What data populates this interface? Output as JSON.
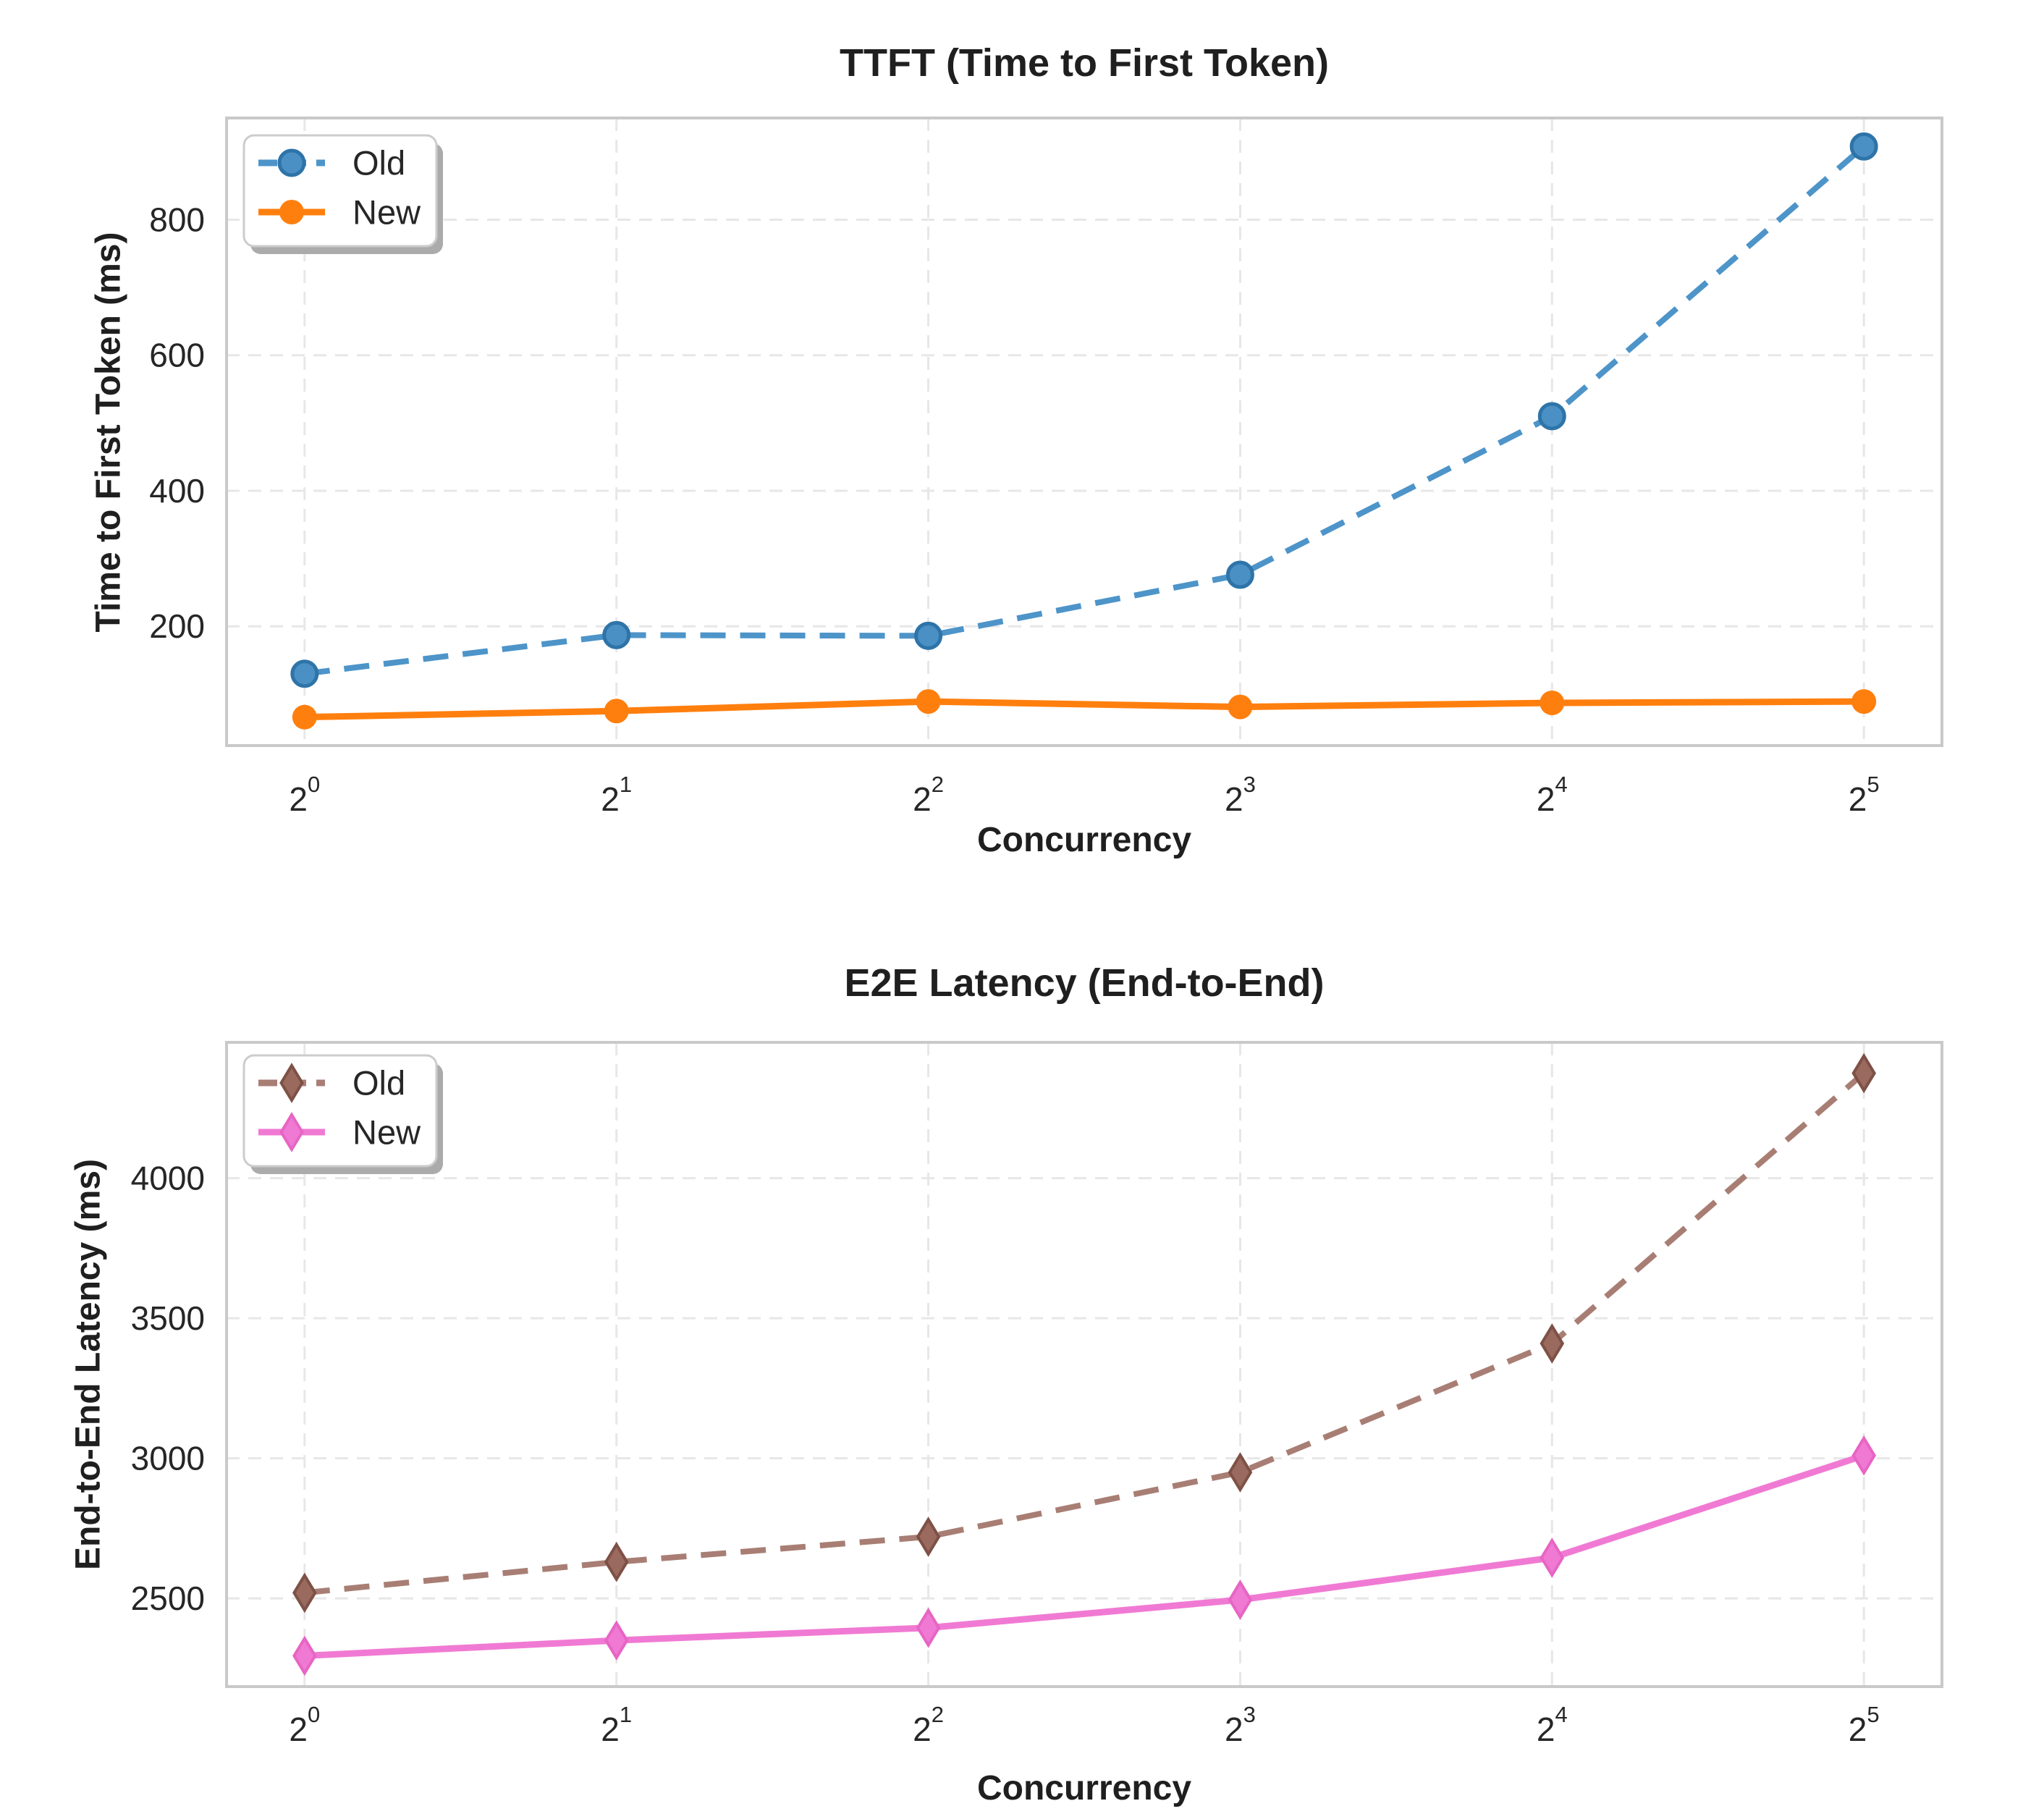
{
  "page": {
    "background": "#ffffff",
    "text_color": "#262626"
  },
  "chart_data": [
    {
      "type": "line",
      "title": "TTFT (Time to First Token)",
      "xlabel": "Concurrency",
      "ylabel": "Time to First Token (ms)",
      "x_scale": "log2",
      "x_values": [
        1,
        2,
        4,
        8,
        16,
        32
      ],
      "x_tick_base": "2",
      "x_tick_exponents": [
        "0",
        "1",
        "2",
        "3",
        "4",
        "5"
      ],
      "y_ticks": [
        200,
        400,
        600,
        800
      ],
      "ylim": [
        24,
        950
      ],
      "grid": true,
      "legend_position": "upper left",
      "legend_entries": [
        "Old",
        "New"
      ],
      "series": [
        {
          "name": "Old",
          "style": "dashed",
          "marker": "circle",
          "color": "#4d94c9",
          "marker_fill": "#4a90c5",
          "marker_edge": "#2e74a8",
          "values": [
            130,
            187,
            186,
            276,
            510,
            908
          ]
        },
        {
          "name": "New",
          "style": "solid",
          "marker": "circle",
          "color": "#ff7f0e",
          "marker_fill": "#ff7f0e",
          "marker_edge": "#ff7f0e",
          "values": [
            66,
            75,
            89,
            81,
            87,
            89
          ]
        }
      ]
    },
    {
      "type": "line",
      "title": "E2E Latency (End-to-End)",
      "xlabel": "Concurrency",
      "ylabel": "End-to-End Latency (ms)",
      "x_scale": "log2",
      "x_values": [
        1,
        2,
        4,
        8,
        16,
        32
      ],
      "x_tick_base": "2",
      "x_tick_exponents": [
        "0",
        "1",
        "2",
        "3",
        "4",
        "5"
      ],
      "y_ticks": [
        2500,
        3000,
        3500,
        4000
      ],
      "ylim": [
        2185,
        4485
      ],
      "grid": true,
      "legend_position": "upper left",
      "legend_entries": [
        "Old",
        "New"
      ],
      "series": [
        {
          "name": "Old",
          "style": "dashed",
          "marker": "thin-diamond",
          "color": "#a87e74",
          "marker_fill": "#9a6a5f",
          "marker_edge": "#7e5146",
          "values": [
            2520,
            2630,
            2720,
            2950,
            3410,
            4375
          ]
        },
        {
          "name": "New",
          "style": "solid",
          "marker": "thin-diamond",
          "color": "#f07ad3",
          "marker_fill": "#f07ad3",
          "marker_edge": "#e765c4",
          "values": [
            2295,
            2350,
            2395,
            2495,
            2645,
            3010
          ]
        }
      ]
    }
  ],
  "style_colors": {
    "grid": "#e7e7e7",
    "spine": "#c9c9c9",
    "legend_border": "#cccccc",
    "legend_shadow": "#ababab",
    "legend_bg": "#ffffff"
  }
}
